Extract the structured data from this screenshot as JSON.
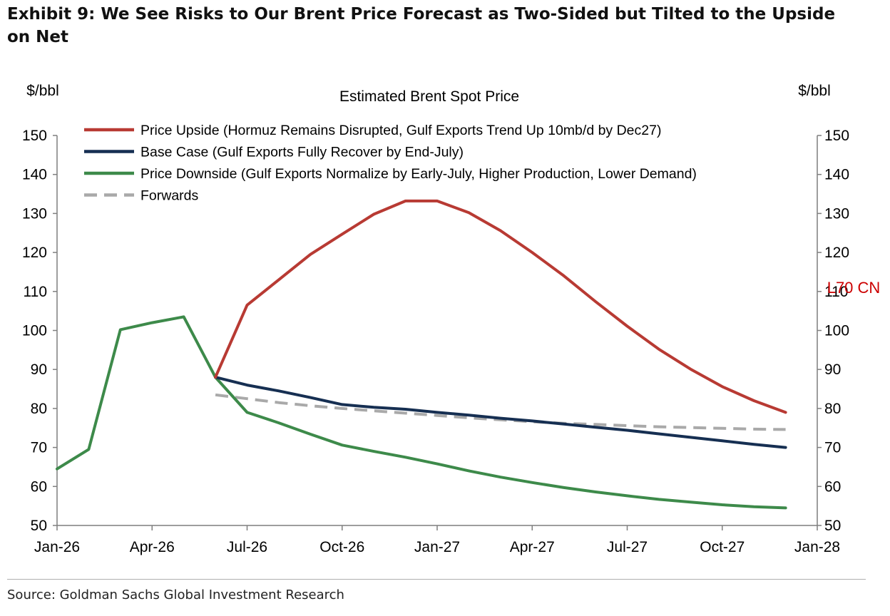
{
  "header": {
    "title": "Exhibit 9: We See Risks to Our Brent Price Forecast as Two-Sided but Tilted to the Upside on Net"
  },
  "footer": {
    "source": "Source: Goldman Sachs Global Investment Research"
  },
  "chart_data": {
    "type": "line",
    "title": "Estimated Brent Spot Price",
    "ylabel_left": "$/bbl",
    "ylabel_right": "$/bbl",
    "ylim": [
      50,
      150
    ],
    "y_ticks": [
      50,
      60,
      70,
      80,
      90,
      100,
      110,
      120,
      130,
      140,
      150
    ],
    "x_ticks": [
      "Jan-26",
      "Apr-26",
      "Jul-26",
      "Oct-26",
      "Jan-27",
      "Apr-27",
      "Jul-27",
      "Oct-27",
      "Jan-28"
    ],
    "x_tick_months": [
      0,
      3,
      6,
      9,
      12,
      15,
      18,
      21,
      24
    ],
    "x_range_months": [
      0,
      24
    ],
    "grid": false,
    "legend_position": "top-left",
    "annotation": {
      "text": "L70 CN",
      "color": "#cc0000",
      "y": 110
    },
    "series": [
      {
        "name": "Price Upside (Hormuz Remains Disrupted, Gulf Exports Trend Up 10mb/d by Dec27)",
        "color": "#b83a33",
        "dash": false,
        "x": [
          5,
          6,
          7,
          8,
          9,
          10,
          11,
          12,
          13,
          14,
          15,
          16,
          17,
          18,
          19,
          20,
          21,
          22,
          23
        ],
        "y": [
          88,
          106.5,
          113,
          119.5,
          124.7,
          129.8,
          133.2,
          133.2,
          130.2,
          125.6,
          120,
          114,
          107.4,
          101.1,
          95.2,
          90.1,
          85.6,
          82,
          79
        ]
      },
      {
        "name": "Base Case (Gulf Exports Fully Recover by End-July)",
        "color": "#162f52",
        "dash": false,
        "x": [
          5,
          6,
          7,
          8,
          9,
          10,
          11,
          12,
          13,
          14,
          15,
          16,
          17,
          18,
          19,
          20,
          21,
          22,
          23
        ],
        "y": [
          88,
          86,
          84.5,
          82.8,
          81,
          80.3,
          79.8,
          79,
          78.3,
          77.5,
          76.8,
          76,
          75.2,
          74.4,
          73.5,
          72.6,
          71.7,
          70.8,
          70
        ]
      },
      {
        "name": "Price Downside (Gulf Exports Normalize by Early-July, Higher Production, Lower Demand)",
        "color": "#3d8a4a",
        "dash": false,
        "x": [
          0,
          1,
          2,
          3,
          4,
          5,
          6,
          7,
          8,
          9,
          10,
          11,
          12,
          13,
          14,
          15,
          16,
          17,
          18,
          19,
          20,
          21,
          22,
          23
        ],
        "y": [
          64.5,
          69.5,
          100.2,
          102,
          103.5,
          88,
          79,
          76.3,
          73.4,
          70.6,
          69,
          67.5,
          65.8,
          64,
          62.4,
          61,
          59.7,
          58.6,
          57.6,
          56.7,
          56,
          55.3,
          54.8,
          54.5
        ]
      },
      {
        "name": "Forwards",
        "color": "#a9a9a9",
        "dash": true,
        "x": [
          5,
          6,
          7,
          8,
          9,
          10,
          11,
          12,
          13,
          14,
          15,
          16,
          17,
          18,
          19,
          20,
          21,
          22,
          23
        ],
        "y": [
          83.5,
          82.5,
          81.5,
          80.7,
          80,
          79.4,
          78.8,
          78.2,
          77.6,
          77.1,
          76.6,
          76.2,
          75.9,
          75.6,
          75.3,
          75.1,
          74.9,
          74.7,
          74.6
        ]
      }
    ]
  }
}
